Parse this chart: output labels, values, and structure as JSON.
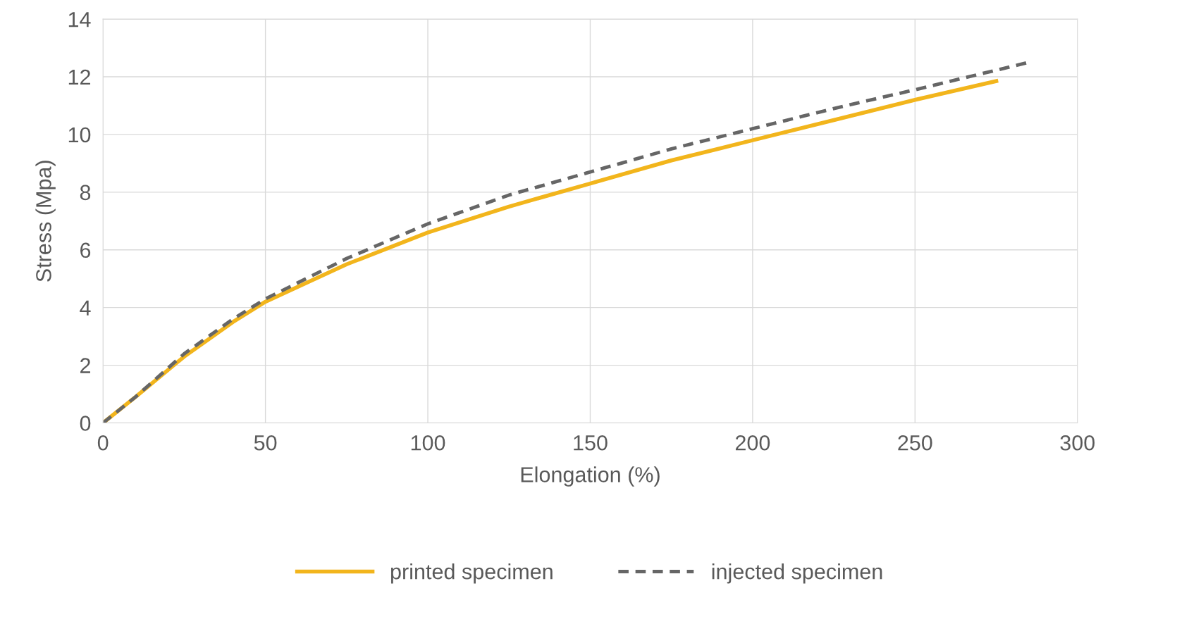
{
  "chart_data": {
    "type": "line",
    "xlabel": "Elongation (%)",
    "ylabel": "Stress (Mpa)",
    "xlim": [
      0,
      300
    ],
    "xticks": [
      0,
      50,
      100,
      150,
      200,
      250,
      300
    ],
    "ylim": [
      0,
      14
    ],
    "yticks": [
      0,
      2,
      4,
      6,
      8,
      10,
      12,
      14
    ],
    "grid": true,
    "legend": "bottom",
    "marker": "none",
    "series": [
      {
        "name": "printed specimen",
        "color": "#f2b51c",
        "line_style": "solid",
        "x": [
          0,
          10,
          25,
          40,
          50,
          75,
          100,
          125,
          150,
          175,
          200,
          225,
          250,
          275
        ],
        "values": [
          0,
          0.9,
          2.3,
          3.5,
          4.2,
          5.5,
          6.6,
          7.5,
          8.3,
          9.1,
          9.8,
          10.5,
          11.2,
          11.85
        ]
      },
      {
        "name": "injected specimen",
        "color": "#666666",
        "line_style": "dashed",
        "x": [
          0,
          10,
          25,
          40,
          50,
          75,
          100,
          125,
          150,
          175,
          200,
          225,
          250,
          285
        ],
        "values": [
          0,
          0.9,
          2.4,
          3.6,
          4.3,
          5.7,
          6.9,
          7.9,
          8.7,
          9.5,
          10.2,
          10.9,
          11.55,
          12.5
        ]
      }
    ]
  }
}
